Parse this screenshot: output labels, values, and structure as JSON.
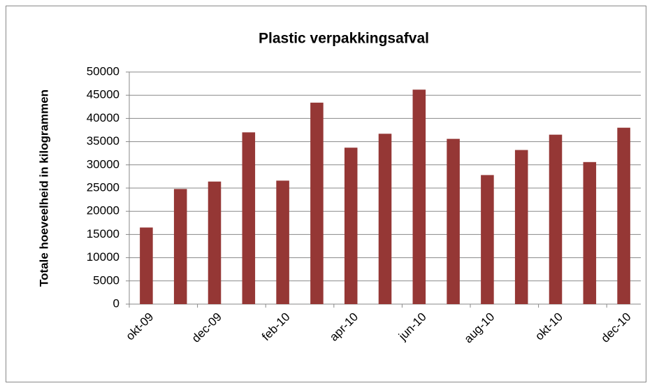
{
  "chart_data": {
    "type": "bar",
    "title": "Plastic verpakkingsafval",
    "y_label": "Totale hoeveelheid in kilogrammen",
    "categories": [
      "okt-09",
      null,
      "dec-09",
      null,
      "feb-10",
      null,
      "apr-10",
      null,
      "jun-10",
      null,
      "aug-10",
      null,
      "okt-10",
      null,
      "dec-10"
    ],
    "values": [
      16500,
      24800,
      26400,
      37000,
      26600,
      43400,
      33700,
      36700,
      46200,
      35600,
      27800,
      33200,
      36500,
      30600,
      38000
    ],
    "color": "#953735",
    "ylim": [
      0,
      50000
    ],
    "yticks": [
      0,
      5000,
      10000,
      15000,
      20000,
      25000,
      30000,
      35000,
      40000,
      45000,
      50000
    ],
    "grid": true
  }
}
